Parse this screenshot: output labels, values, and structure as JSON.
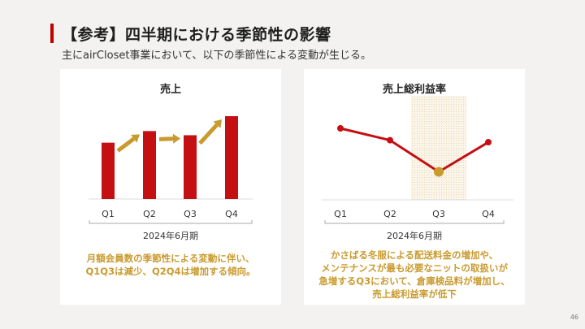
{
  "header": {
    "title": "【参考】四半期における季節性の影響",
    "subtitle": "主にairCloset事業において、以下の季節性による変動が生じる。"
  },
  "left_card": {
    "title": "売上",
    "period": "2024年6月期",
    "note_lines": [
      "月額会員数の季節性による変動に伴い、",
      "Q1Q3は減少、Q2Q4は増加する傾向。"
    ]
  },
  "right_card": {
    "title": "売上総利益率",
    "period": "2024年6月期",
    "note_lines": [
      "かさばる冬服による配送料金の増加や、",
      "メンテナンスが最も必要なニットの取扱いが",
      "急増するQ3において、倉庫検品料が増加し、",
      "売上総利益率が低下"
    ]
  },
  "page_number": "46",
  "colors": {
    "accent_red": "#c00000",
    "accent_gold": "#c99a2e",
    "bar_red": "#c40f13"
  },
  "chart_data": [
    {
      "type": "bar",
      "title": "売上",
      "categories": [
        "Q1",
        "Q2",
        "Q3",
        "Q4"
      ],
      "values": [
        68,
        82,
        77,
        100
      ],
      "xlabel": "2024年6月期",
      "ylim": [
        0,
        100
      ],
      "grid": false,
      "trend_arrows": [
        "up",
        "flat",
        "up"
      ]
    },
    {
      "type": "line",
      "title": "売上総利益率",
      "categories": [
        "Q1",
        "Q2",
        "Q3",
        "Q4"
      ],
      "values": [
        100,
        94,
        78,
        93
      ],
      "xlabel": "2024年6月期",
      "ylim": [
        0,
        100
      ],
      "highlight": "Q3",
      "grid": false
    }
  ]
}
